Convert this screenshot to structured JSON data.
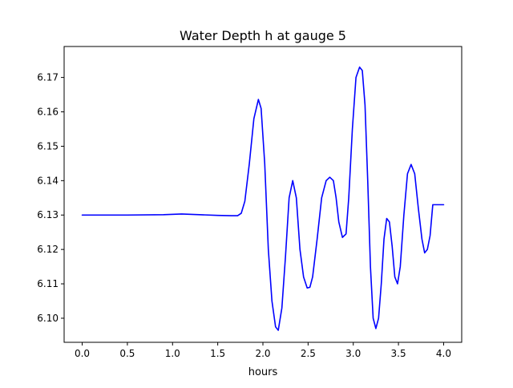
{
  "chart_data": {
    "type": "line",
    "title": "Water Depth h at gauge 5",
    "xlabel": "hours",
    "ylabel": "",
    "xlim": [
      -0.2,
      4.2
    ],
    "ylim": [
      6.093,
      6.179
    ],
    "xticks": [
      0.0,
      0.5,
      1.0,
      1.5,
      2.0,
      2.5,
      3.0,
      3.5,
      4.0
    ],
    "xtick_labels": [
      "0.0",
      "0.5",
      "1.0",
      "1.5",
      "2.0",
      "2.5",
      "3.0",
      "3.5",
      "4.0"
    ],
    "yticks": [
      6.1,
      6.11,
      6.12,
      6.13,
      6.14,
      6.15,
      6.16,
      6.17
    ],
    "ytick_labels": [
      "6.10",
      "6.11",
      "6.12",
      "6.13",
      "6.14",
      "6.15",
      "6.16",
      "6.17"
    ],
    "grid": false,
    "legend": "none",
    "series": [
      {
        "color": "#0000ff",
        "x": [
          0.0,
          0.5,
          0.9,
          1.1,
          1.3,
          1.5,
          1.65,
          1.72,
          1.76,
          1.8,
          1.85,
          1.9,
          1.95,
          1.98,
          2.02,
          2.06,
          2.1,
          2.14,
          2.17,
          2.21,
          2.25,
          2.29,
          2.33,
          2.37,
          2.41,
          2.45,
          2.49,
          2.52,
          2.55,
          2.6,
          2.65,
          2.7,
          2.74,
          2.78,
          2.81,
          2.84,
          2.88,
          2.92,
          2.95,
          2.99,
          3.03,
          3.07,
          3.1,
          3.13,
          3.16,
          3.19,
          3.22,
          3.25,
          3.28,
          3.31,
          3.34,
          3.37,
          3.4,
          3.43,
          3.46,
          3.49,
          3.52,
          3.56,
          3.6,
          3.64,
          3.68,
          3.72,
          3.76,
          3.79,
          3.82,
          3.85,
          3.88,
          3.91,
          3.94,
          3.97,
          4.0
        ],
        "y": [
          6.13,
          6.13,
          6.1301,
          6.1303,
          6.1301,
          6.1299,
          6.1298,
          6.1298,
          6.1305,
          6.134,
          6.145,
          6.158,
          6.1636,
          6.161,
          6.145,
          6.12,
          6.105,
          6.0975,
          6.0965,
          6.103,
          6.118,
          6.135,
          6.14,
          6.135,
          6.12,
          6.112,
          6.1088,
          6.109,
          6.112,
          6.123,
          6.135,
          6.14,
          6.141,
          6.14,
          6.135,
          6.128,
          6.1235,
          6.1245,
          6.135,
          6.155,
          6.17,
          6.173,
          6.172,
          6.162,
          6.14,
          6.115,
          6.1,
          6.097,
          6.1,
          6.11,
          6.123,
          6.129,
          6.128,
          6.121,
          6.112,
          6.11,
          6.115,
          6.13,
          6.142,
          6.1447,
          6.142,
          6.132,
          6.123,
          6.119,
          6.12,
          6.124,
          6.133,
          6.133,
          6.133,
          6.133,
          6.133
        ]
      }
    ]
  }
}
